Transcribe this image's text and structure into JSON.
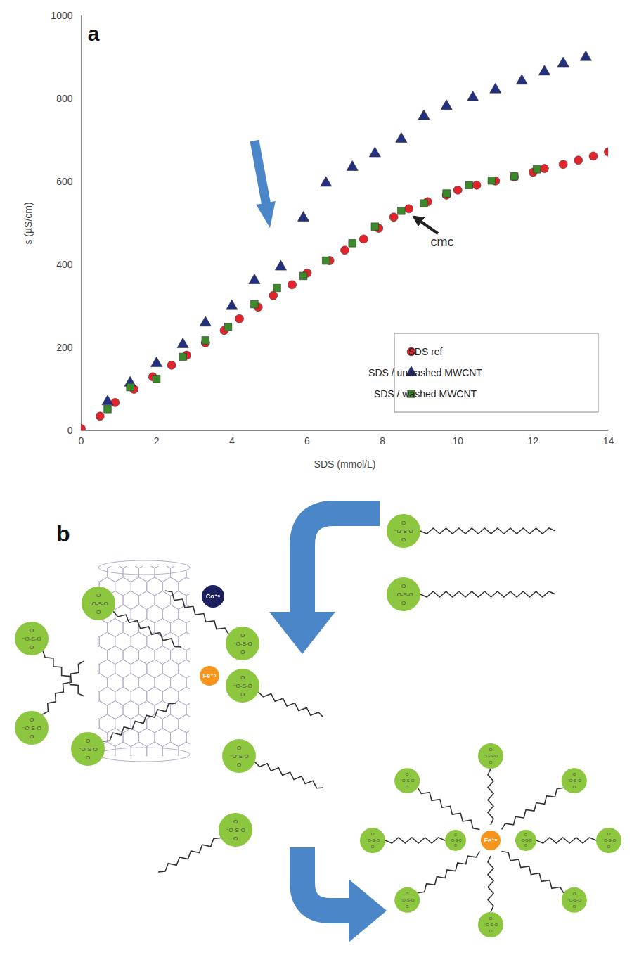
{
  "chart_data": {
    "type": "scatter",
    "panel_label": "a",
    "xlabel": "SDS (mmol/L)",
    "ylabel": "s (µS/cm)",
    "xlim": [
      0,
      14
    ],
    "ylim": [
      0,
      1000
    ],
    "xticks": [
      0,
      2,
      4,
      6,
      8,
      10,
      12,
      14
    ],
    "yticks": [
      0,
      200,
      400,
      600,
      800,
      1000
    ],
    "grid": false,
    "legend": "bottom-right",
    "series": [
      {
        "name": "SDS ref",
        "color": "#e3242b",
        "marker": "circle",
        "x": [
          0,
          0.5,
          0.9,
          1.4,
          1.9,
          2.4,
          2.8,
          3.3,
          3.8,
          4.2,
          4.7,
          5.1,
          5.6,
          6.0,
          6.6,
          7.0,
          7.5,
          7.9,
          8.3,
          8.7,
          9.2,
          9.7,
          10.0,
          10.5,
          11.0,
          11.5,
          12.0,
          12.3,
          12.8,
          13.2,
          13.6,
          14.0
        ],
        "values": [
          5,
          35,
          68,
          100,
          130,
          158,
          182,
          212,
          242,
          270,
          298,
          326,
          352,
          380,
          410,
          435,
          462,
          488,
          515,
          535,
          552,
          568,
          580,
          592,
          602,
          612,
          623,
          632,
          642,
          652,
          662,
          672
        ]
      },
      {
        "name": "SDS / unwashed MWCNT",
        "color": "#22307f",
        "marker": "triangle",
        "x": [
          0.7,
          1.3,
          2.0,
          2.7,
          3.3,
          4.0,
          4.6,
          5.3,
          5.9,
          6.5,
          7.2,
          7.8,
          8.5,
          9.1,
          9.7,
          10.4,
          11.0,
          11.7,
          12.3,
          12.8,
          13.4
        ],
        "values": [
          70,
          115,
          162,
          208,
          260,
          300,
          362,
          395,
          513,
          597,
          635,
          668,
          703,
          758,
          782,
          803,
          822,
          843,
          865,
          885,
          900
        ]
      },
      {
        "name": "SDS / washed MWCNT",
        "color": "#3b8a2a",
        "marker": "square",
        "x": [
          0.7,
          1.3,
          2.0,
          2.7,
          3.3,
          3.9,
          4.6,
          5.2,
          5.9,
          6.5,
          7.2,
          7.8,
          8.5,
          9.1,
          9.7,
          10.3,
          10.9,
          11.5,
          12.1
        ],
        "values": [
          52,
          105,
          125,
          178,
          218,
          250,
          305,
          344,
          373,
          410,
          452,
          492,
          530,
          548,
          572,
          592,
          603,
          613,
          630
        ]
      }
    ],
    "annotations": [
      {
        "text": "cmc",
        "x": 8.7,
        "y": 525
      }
    ]
  },
  "diagram": {
    "panel_label": "b",
    "head_group": {
      "top": "O",
      "middle": "⁻O-S-O",
      "bottom": "O"
    },
    "ions": [
      {
        "label": "Co⁺ⁿ"
      },
      {
        "label": "Fe⁺ⁿ"
      }
    ]
  }
}
